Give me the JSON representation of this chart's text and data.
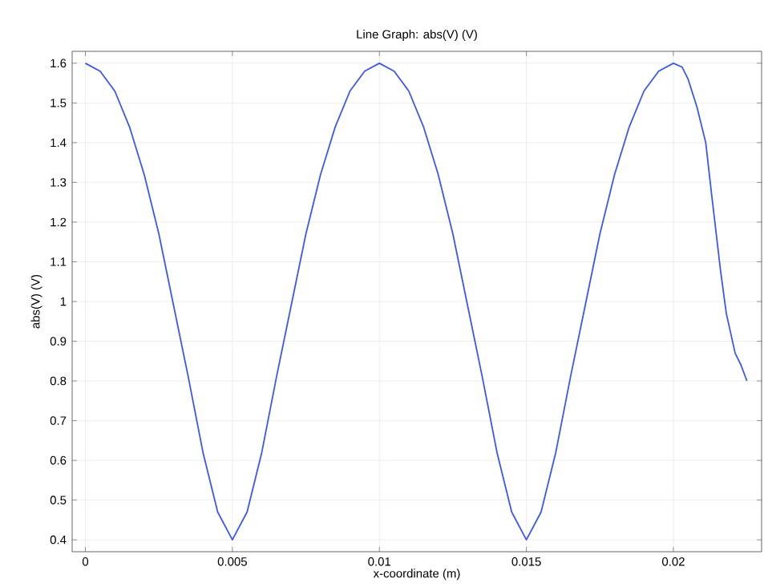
{
  "chart_data": {
    "type": "line",
    "title": "Line Graph: abs(V) (V)",
    "xlabel": "x-coordinate (m)",
    "ylabel": "abs(V) (V)",
    "x": [
      0,
      0.0005,
      0.001,
      0.0015,
      0.002,
      0.0025,
      0.003,
      0.0035,
      0.004,
      0.0045,
      0.005,
      0.0055,
      0.006,
      0.0065,
      0.007,
      0.0075,
      0.008,
      0.0085,
      0.009,
      0.0095,
      0.01,
      0.0105,
      0.011,
      0.0115,
      0.012,
      0.0125,
      0.013,
      0.0135,
      0.014,
      0.0145,
      0.015,
      0.0155,
      0.016,
      0.0165,
      0.017,
      0.0175,
      0.018,
      0.0185,
      0.019,
      0.0195,
      0.02,
      0.0203,
      0.0205,
      0.0208,
      0.0211,
      0.0213,
      0.0216,
      0.0218,
      0.0221,
      0.0223,
      0.0225
    ],
    "values": [
      1.6,
      1.58,
      1.53,
      1.44,
      1.32,
      1.17,
      0.99,
      0.81,
      0.62,
      0.47,
      0.4,
      0.47,
      0.62,
      0.81,
      0.99,
      1.17,
      1.32,
      1.44,
      1.53,
      1.58,
      1.6,
      1.58,
      1.53,
      1.44,
      1.32,
      1.17,
      0.99,
      0.81,
      0.62,
      0.47,
      0.4,
      0.47,
      0.62,
      0.81,
      0.99,
      1.17,
      1.32,
      1.44,
      1.53,
      1.58,
      1.6,
      1.59,
      1.56,
      1.49,
      1.4,
      1.27,
      1.08,
      0.97,
      0.87,
      0.84,
      0.8
    ],
    "color": "#3a56f5",
    "line_style": "solid",
    "grid": true,
    "xlim": [
      -0.00045,
      0.023
    ],
    "xticks": [
      0,
      0.005,
      0.01,
      0.015,
      0.02
    ],
    "ylim": [
      0.37,
      1.63
    ],
    "yticks": [
      0.4,
      0.5,
      0.6,
      0.7,
      0.8,
      0.9,
      1,
      1.1,
      1.2,
      1.3,
      1.4,
      1.5,
      1.6
    ]
  }
}
